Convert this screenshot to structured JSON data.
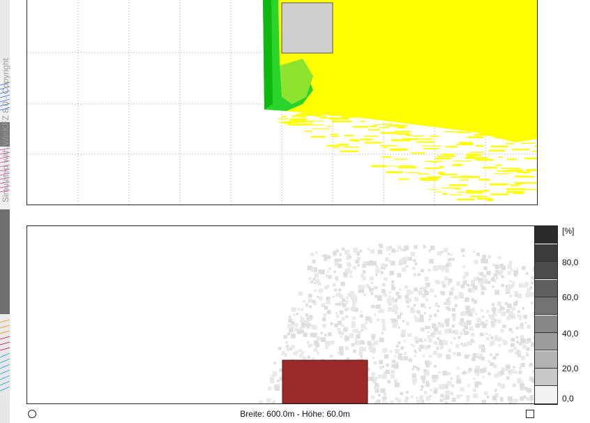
{
  "watermark": "Simulated with WinKFZ 8.0 - Copyright",
  "legend": {
    "unit": "[%]",
    "ticks": [
      "80,0",
      "60,0",
      "40,0",
      "20,0",
      "0,0"
    ],
    "scale_colors": [
      "#2b2b2b",
      "#3b3b3b",
      "#4b4b4b",
      "#5f5f5f",
      "#737373",
      "#878787",
      "#9c9c9c",
      "#b2b2b2",
      "#c8c8c8",
      "#dedede"
    ]
  },
  "footer": {
    "dimensions": "Breite: 600.0m - Höhe: 60.0m"
  },
  "colors": {
    "plume_yellow": "#ffff00",
    "plume_green": "#14d414",
    "obstacle_gray": "#cfcfcf",
    "obstacle_red": "#9b2b2b",
    "grid": "#c8c8c8"
  }
}
